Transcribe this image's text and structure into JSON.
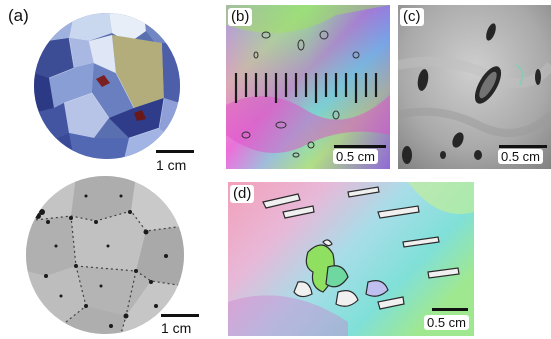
{
  "panels": {
    "a": {
      "label": "(a)",
      "scale_top": "1 cm",
      "scale_bottom": "1 cm"
    },
    "b": {
      "label": "(b)",
      "scale": "0.5 cm"
    },
    "c": {
      "label": "(c)",
      "scale": "0.5 cm"
    },
    "d": {
      "label": "(d)",
      "scale": "0.5 cm"
    }
  }
}
